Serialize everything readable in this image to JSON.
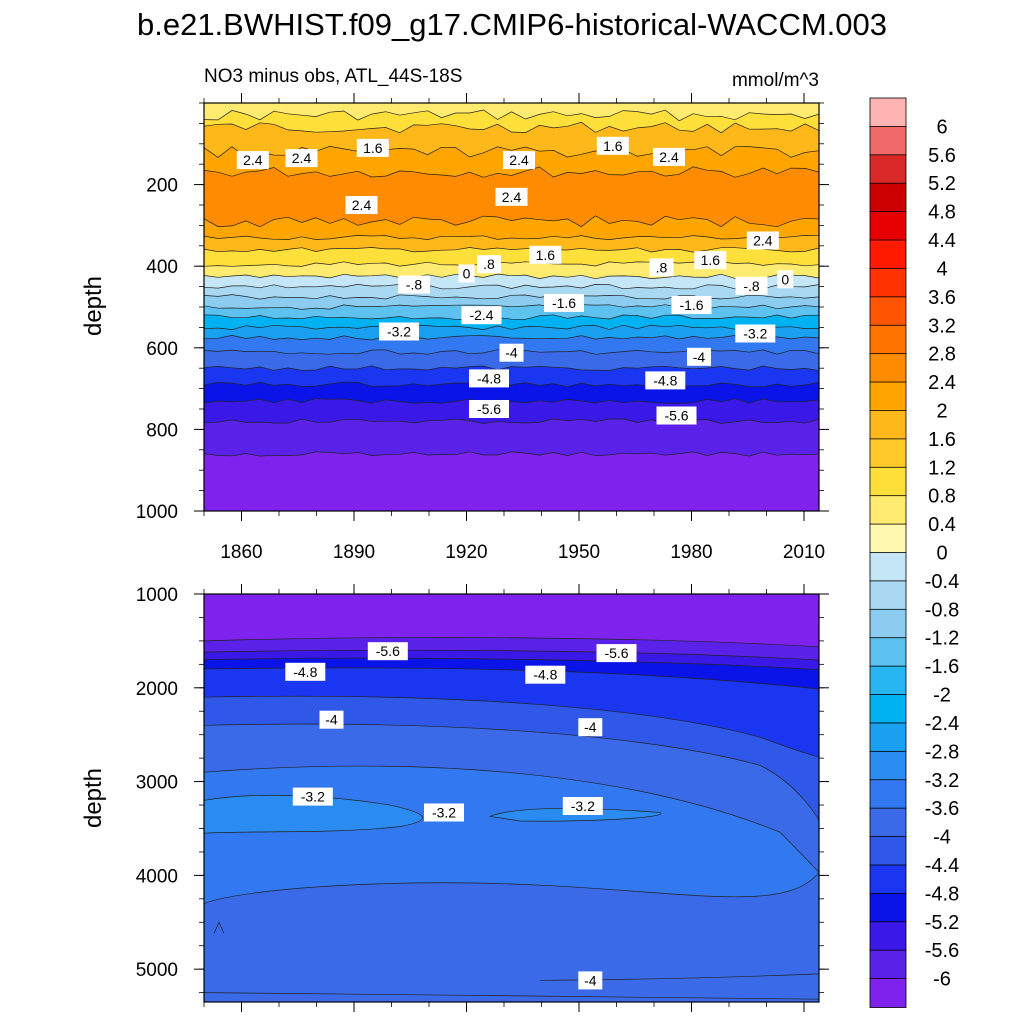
{
  "chart_data": {
    "type": "contour",
    "title": "b.e21.BWHIST.f09_g17.CMIP6-historical-WACCM.003",
    "subtitle_left": "NO3 minus obs, ATL_44S-18S",
    "units": "mmol/m^3",
    "x_ticks": [
      1860,
      1890,
      1920,
      1950,
      1980,
      2010
    ],
    "x_range": [
      1850,
      2014
    ],
    "panels": [
      {
        "name": "upper",
        "ylabel": "depth",
        "y_ticks": [
          200,
          400,
          600,
          800,
          1000
        ],
        "y_range": [
          0,
          1000
        ],
        "layers": [
          {
            "top": 0,
            "bottom": 30,
            "value": 0.6
          },
          {
            "top": 30,
            "bottom": 60,
            "value": 1.0
          },
          {
            "top": 60,
            "bottom": 120,
            "value": 1.6
          },
          {
            "top": 120,
            "bottom": 170,
            "value": 2.2
          },
          {
            "top": 170,
            "bottom": 290,
            "value": 2.6
          },
          {
            "top": 290,
            "bottom": 330,
            "value": 2.2
          },
          {
            "top": 330,
            "bottom": 360,
            "value": 1.6
          },
          {
            "top": 360,
            "bottom": 395,
            "value": 1.0
          },
          {
            "top": 395,
            "bottom": 425,
            "value": 0.4
          },
          {
            "top": 425,
            "bottom": 450,
            "value": -0.2
          },
          {
            "top": 450,
            "bottom": 475,
            "value": -0.6
          },
          {
            "top": 475,
            "bottom": 500,
            "value": -1.0
          },
          {
            "top": 500,
            "bottom": 525,
            "value": -1.4
          },
          {
            "top": 525,
            "bottom": 550,
            "value": -2.2
          },
          {
            "top": 550,
            "bottom": 575,
            "value": -2.6
          },
          {
            "top": 575,
            "bottom": 610,
            "value": -3.4
          },
          {
            "top": 610,
            "bottom": 650,
            "value": -3.8
          },
          {
            "top": 650,
            "bottom": 690,
            "value": -4.6
          },
          {
            "top": 690,
            "bottom": 730,
            "value": -5.0
          },
          {
            "top": 730,
            "bottom": 780,
            "value": -5.4
          },
          {
            "top": 780,
            "bottom": 860,
            "value": -5.8
          },
          {
            "top": 860,
            "bottom": 1000,
            "value": -6.2
          }
        ],
        "contour_labels": [
          {
            "text": "2.4",
            "x": 1863,
            "y": 140
          },
          {
            "text": "2.4",
            "x": 1876,
            "y": 135
          },
          {
            "text": "1.6",
            "x": 1895,
            "y": 110
          },
          {
            "text": "2.4",
            "x": 1934,
            "y": 140
          },
          {
            "text": "1.6",
            "x": 1959,
            "y": 105
          },
          {
            "text": "2.4",
            "x": 1974,
            "y": 132
          },
          {
            "text": "2.4",
            "x": 1892,
            "y": 250
          },
          {
            "text": "2.4",
            "x": 1932,
            "y": 230
          },
          {
            "text": "2.4",
            "x": 1999,
            "y": 337
          },
          {
            "text": "1.6",
            "x": 1941,
            "y": 372
          },
          {
            "text": "1.6",
            "x": 1985,
            "y": 385
          },
          {
            "text": ".8",
            "x": 1926,
            "y": 395
          },
          {
            "text": ".8",
            "x": 1972,
            "y": 403
          },
          {
            "text": "0",
            "x": 1920,
            "y": 418
          },
          {
            "text": "0",
            "x": 2005,
            "y": 432
          },
          {
            "text": "-.8",
            "x": 1906,
            "y": 445
          },
          {
            "text": "-.8",
            "x": 1996,
            "y": 448
          },
          {
            "text": "-1.6",
            "x": 1946,
            "y": 490
          },
          {
            "text": "-1.6",
            "x": 1980,
            "y": 495
          },
          {
            "text": "-2.4",
            "x": 1924,
            "y": 520
          },
          {
            "text": "-3.2",
            "x": 1902,
            "y": 560
          },
          {
            "text": "-3.2",
            "x": 1997,
            "y": 565
          },
          {
            "text": "-4",
            "x": 1932,
            "y": 612
          },
          {
            "text": "-4",
            "x": 1982,
            "y": 622
          },
          {
            "text": "-4.8",
            "x": 1926,
            "y": 675
          },
          {
            "text": "-4.8",
            "x": 1973,
            "y": 680
          },
          {
            "text": "-5.6",
            "x": 1926,
            "y": 750
          },
          {
            "text": "-5.6",
            "x": 1976,
            "y": 766
          }
        ]
      },
      {
        "name": "lower",
        "ylabel": "depth",
        "y_ticks": [
          1000,
          2000,
          3000,
          4000,
          5000
        ],
        "y_range": [
          1000,
          5350
        ],
        "contour_labels": [
          {
            "text": "-5.6",
            "x": 1899,
            "y": 1610
          },
          {
            "text": "-5.6",
            "x": 1960,
            "y": 1630
          },
          {
            "text": "-4.8",
            "x": 1877,
            "y": 1830
          },
          {
            "text": "-4.8",
            "x": 1941,
            "y": 1860
          },
          {
            "text": "-4",
            "x": 1884,
            "y": 2340
          },
          {
            "text": "-4",
            "x": 1953,
            "y": 2420
          },
          {
            "text": "-3.2",
            "x": 1879,
            "y": 3160
          },
          {
            "text": "-3.2",
            "x": 1914,
            "y": 3330
          },
          {
            "text": "-3.2",
            "x": 1951,
            "y": 3260
          },
          {
            "text": "-4",
            "x": 1953,
            "y": 5120
          }
        ]
      }
    ],
    "colorbar": {
      "levels": [
        6,
        5.6,
        5.2,
        4.8,
        4.4,
        4,
        3.6,
        3.2,
        2.8,
        2.4,
        2,
        1.6,
        1.2,
        0.8,
        0.4,
        0,
        -0.4,
        -0.8,
        -1.2,
        -1.6,
        -2,
        -2.4,
        -2.8,
        -3.2,
        -3.6,
        -4,
        -4.4,
        -4.8,
        -5.2,
        -5.6,
        -6
      ],
      "tick_labels": [
        "6",
        "5.6",
        "5.2",
        "4.8",
        "4.4",
        "4",
        "3.6",
        "3.2",
        "2.8",
        "2.4",
        "2",
        "1.6",
        "1.2",
        "0.8",
        "0.4",
        "0",
        "-0.4",
        "-0.8",
        "-1.2",
        "-1.6",
        "-2",
        "-2.4",
        "-2.8",
        "-3.2",
        "-3.6",
        "-4",
        "-4.4",
        "-4.8",
        "-5.2",
        "-5.6",
        "-6"
      ],
      "colors": [
        "#ffb3b3",
        "#f06a6a",
        "#d82828",
        "#cc0000",
        "#e60000",
        "#ff1a00",
        "#ff3300",
        "#ff5500",
        "#ff7400",
        "#ff8c00",
        "#ffa500",
        "#ffb81a",
        "#ffca2a",
        "#ffdf3a",
        "#ffeb70",
        "#fff9b0",
        "#c5e6f7",
        "#a8d8f2",
        "#8cccf0",
        "#5ec2f1",
        "#28b6f2",
        "#00b2f2",
        "#1aa0f0",
        "#2a8cf0",
        "#3278f0",
        "#3a6ae8",
        "#2f58e8",
        "#1a36f0",
        "#0a14e8",
        "#3a18e8",
        "#5a22e8",
        "#7f22ee"
      ]
    }
  }
}
